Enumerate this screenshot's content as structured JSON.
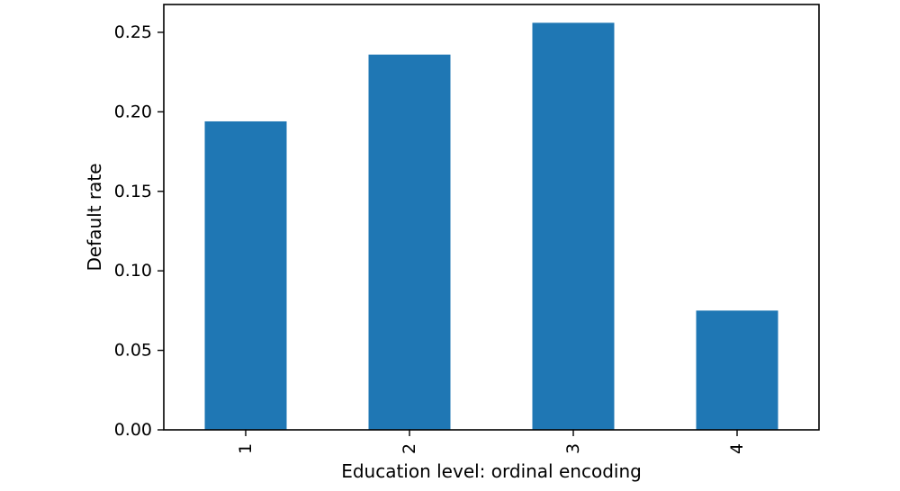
{
  "chart_data": {
    "type": "bar",
    "categories": [
      "1",
      "2",
      "3",
      "4"
    ],
    "values": [
      0.194,
      0.236,
      0.256,
      0.075
    ],
    "xlabel": "Education level: ordinal encoding",
    "ylabel": "Default rate",
    "ylim": [
      0,
      0.2675
    ],
    "yticks": [
      "0.00",
      "0.05",
      "0.10",
      "0.15",
      "0.20",
      "0.25"
    ],
    "bar_color": "#1f77b4",
    "grid": false,
    "x_tick_rotation": "vertical"
  }
}
